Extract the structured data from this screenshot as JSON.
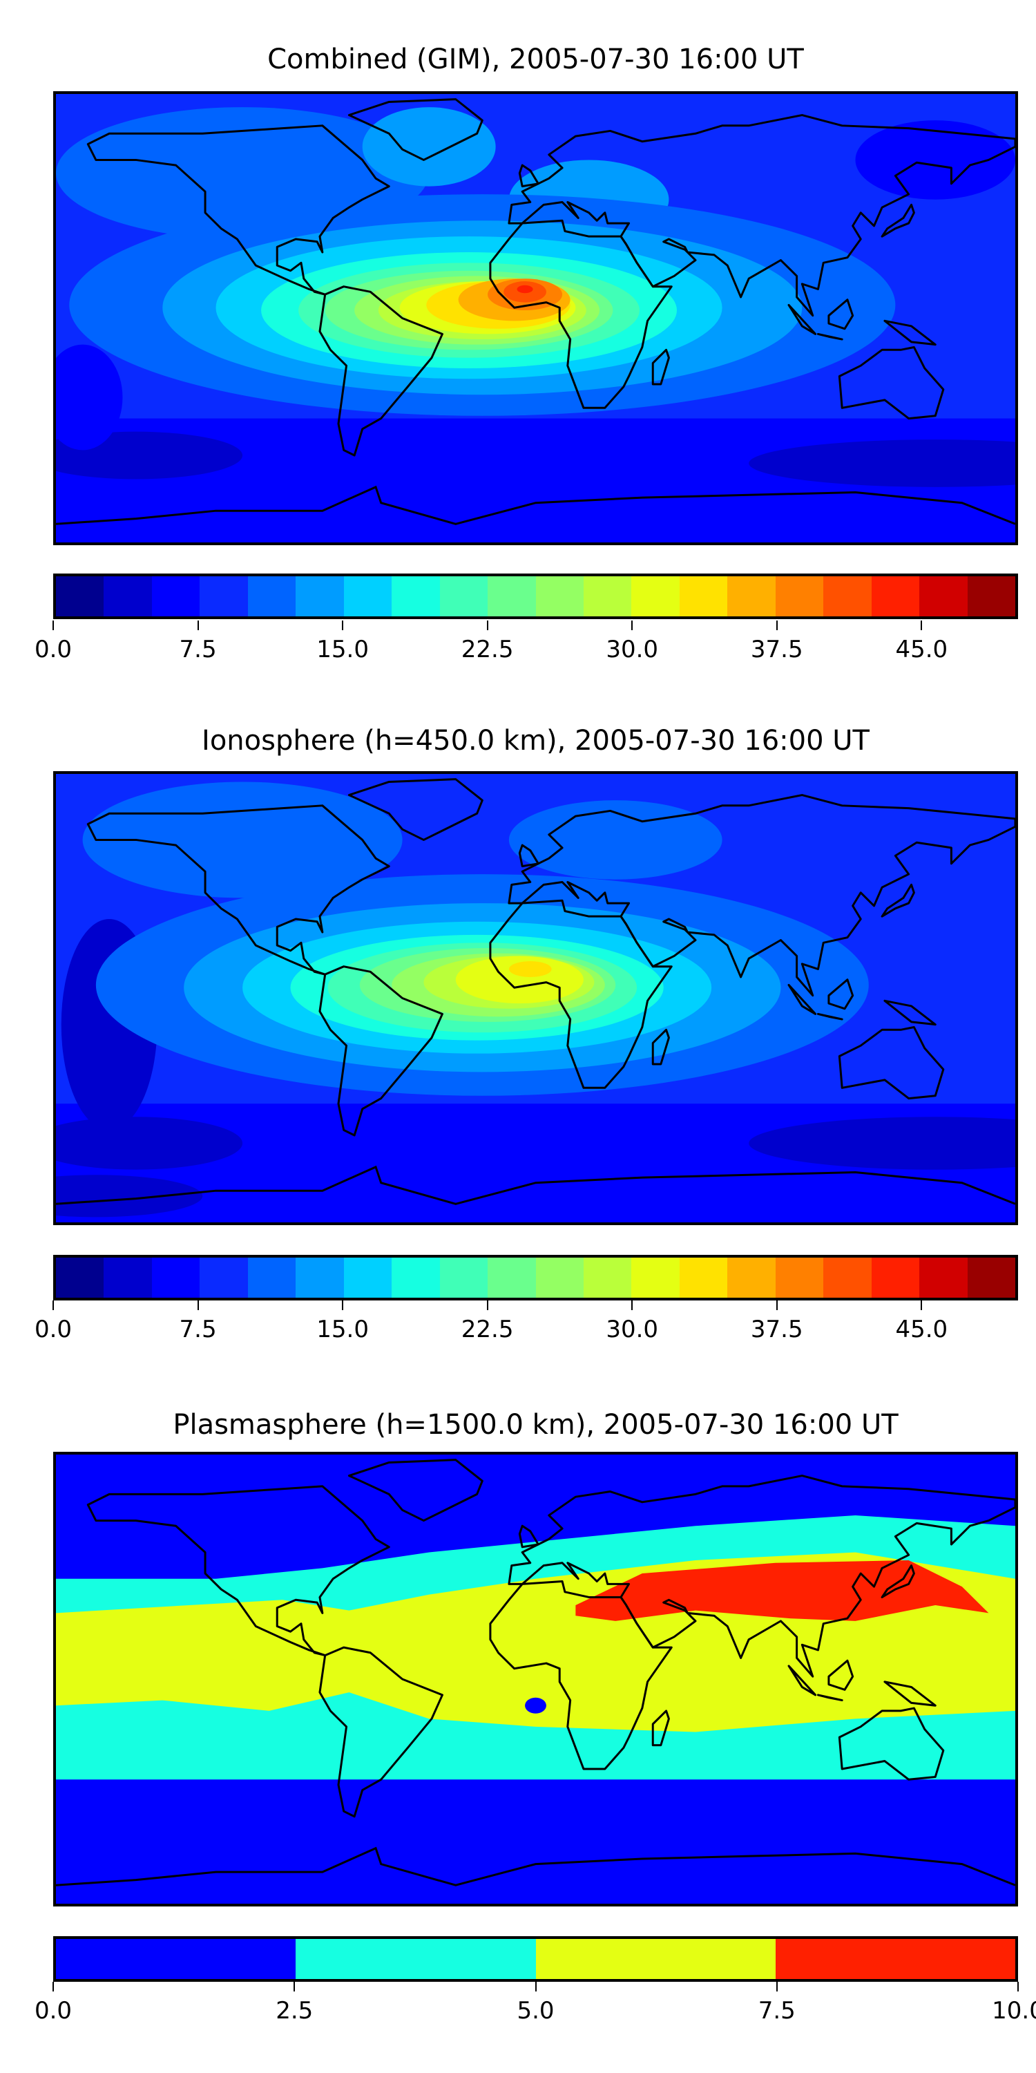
{
  "chart_data": [
    {
      "type": "heatmap",
      "title": "Combined (GIM), 2005-07-30 16:00 UT",
      "colorbar": {
        "range": [
          0,
          50
        ],
        "levels": [
          0,
          2.5,
          5,
          7.5,
          10,
          12.5,
          15,
          17.5,
          20,
          22.5,
          25,
          27.5,
          30,
          32.5,
          35,
          37.5,
          40,
          42.5,
          45,
          47.5,
          50
        ],
        "colors": [
          "#00008f",
          "#0000cd",
          "#0000ff",
          "#0a2aff",
          "#0064ff",
          "#009cff",
          "#00d0ff",
          "#16ffe1",
          "#40ffb7",
          "#6aff8d",
          "#94ff63",
          "#baff3a",
          "#e4ff13",
          "#ffe200",
          "#ffb000",
          "#ff8000",
          "#ff5100",
          "#ff2000",
          "#d10000",
          "#990000"
        ],
        "ticks": [
          0,
          7.5,
          15,
          22.5,
          30,
          37.5,
          45
        ],
        "tick_labels": [
          "0.0",
          "7.5",
          "15.0",
          "22.5",
          "30.0",
          "37.5",
          "45.0"
        ]
      },
      "peak_band": [
        40,
        42.5
      ]
    },
    {
      "type": "heatmap",
      "title": "Ionosphere  (h=450.0 km), 2005-07-30 16:00 UT",
      "colorbar": {
        "range": [
          0,
          50
        ],
        "levels": [
          0,
          2.5,
          5,
          7.5,
          10,
          12.5,
          15,
          17.5,
          20,
          22.5,
          25,
          27.5,
          30,
          32.5,
          35,
          37.5,
          40,
          42.5,
          45,
          47.5,
          50
        ],
        "colors": [
          "#00008f",
          "#0000cd",
          "#0000ff",
          "#0a2aff",
          "#0064ff",
          "#009cff",
          "#00d0ff",
          "#16ffe1",
          "#40ffb7",
          "#6aff8d",
          "#94ff63",
          "#baff3a",
          "#e4ff13",
          "#ffe200",
          "#ffb000",
          "#ff8000",
          "#ff5100",
          "#ff2000",
          "#d10000",
          "#990000"
        ],
        "ticks": [
          0,
          7.5,
          15,
          22.5,
          30,
          37.5,
          45
        ],
        "tick_labels": [
          "0.0",
          "7.5",
          "15.0",
          "22.5",
          "30.0",
          "37.5",
          "45.0"
        ]
      },
      "peak_band": [
        35,
        37.5
      ]
    },
    {
      "type": "heatmap",
      "title": "Plasmasphere (h=1500.0 km), 2005-07-30 16:00 UT",
      "colorbar": {
        "range": [
          0,
          10
        ],
        "levels": [
          0,
          2.5,
          5,
          7.5,
          10
        ],
        "colors": [
          "#0000ff",
          "#16ffe1",
          "#e4ff13",
          "#ff2000"
        ],
        "ticks": [
          0,
          2.5,
          5,
          7.5,
          10
        ],
        "tick_labels": [
          "0.0",
          "2.5",
          "5.0",
          "7.5",
          "10.0"
        ]
      },
      "peak_band": [
        7.5,
        10
      ]
    }
  ]
}
